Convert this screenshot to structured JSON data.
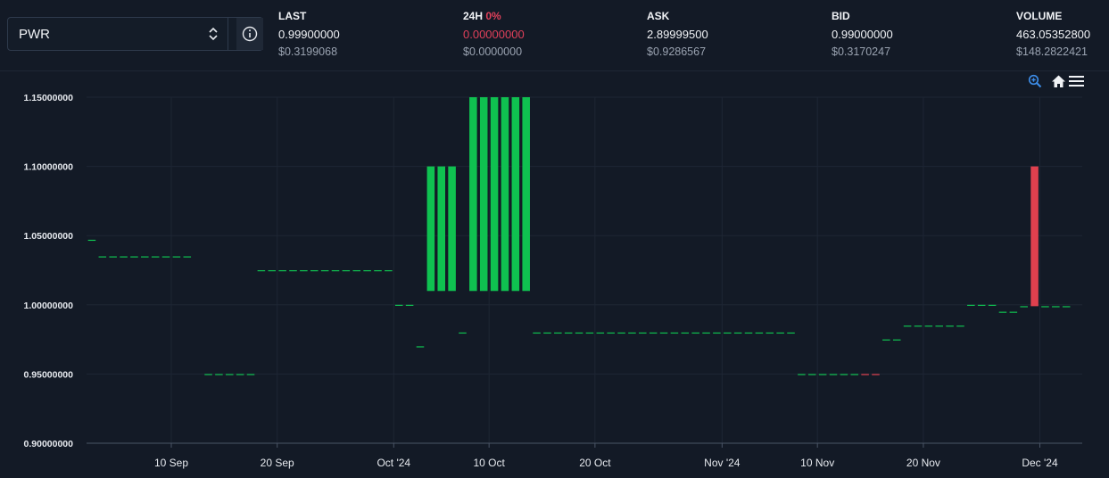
{
  "selector": {
    "symbol": "PWR"
  },
  "stats": {
    "last": {
      "label": "LAST",
      "value": "0.99900000",
      "usd": "$0.3199068"
    },
    "change": {
      "label": "24H",
      "pct": "0%",
      "value": "0.00000000",
      "usd": "$0.0000000"
    },
    "ask": {
      "label": "ASK",
      "value": "2.89999500",
      "usd": "$0.9286567"
    },
    "bid": {
      "label": "BID",
      "value": "0.99000000",
      "usd": "$0.3170247"
    },
    "volume": {
      "label": "VOLUME",
      "value": "463.05352800",
      "usd": "$148.2822421"
    }
  },
  "toolbar": {
    "icons": [
      "zoom-in-icon",
      "home-icon",
      "menu-icon"
    ]
  },
  "colors": {
    "up": "#0fc150",
    "down": "#e0404e",
    "grid": "#1e2634",
    "background": "#131a26"
  },
  "chart_data": {
    "type": "candlestick",
    "ylim": [
      0.9,
      1.15
    ],
    "yticks": [
      "1.15000000",
      "1.10000000",
      "1.05000000",
      "1.00000000",
      "0.95000000",
      "0.90000000"
    ],
    "ytick_values": [
      1.15,
      1.1,
      1.05,
      1.0,
      0.95,
      0.9
    ],
    "xlim": [
      "2024-09-02",
      "2024-12-05"
    ],
    "xticks": [
      {
        "date": "2024-09-10",
        "label": "10 Sep"
      },
      {
        "date": "2024-09-20",
        "label": "20 Sep"
      },
      {
        "date": "2024-10-01",
        "label": "Oct '24"
      },
      {
        "date": "2024-10-10",
        "label": "10 Oct"
      },
      {
        "date": "2024-10-20",
        "label": "20 Oct"
      },
      {
        "date": "2024-11-01",
        "label": "Nov '24"
      },
      {
        "date": "2024-11-10",
        "label": "10 Nov"
      },
      {
        "date": "2024-11-20",
        "label": "20 Nov"
      },
      {
        "date": "2024-12-01",
        "label": "Dec '24"
      }
    ],
    "grid": true,
    "candles": [
      {
        "start": "2024-09-02",
        "count": 1,
        "open": 1.047,
        "close": 1.047,
        "dir": "up"
      },
      {
        "start": "2024-09-03",
        "count": 9,
        "open": 1.035,
        "close": 1.035,
        "dir": "up"
      },
      {
        "start": "2024-09-13",
        "count": 5,
        "open": 0.95,
        "close": 0.95,
        "dir": "up"
      },
      {
        "start": "2024-09-18",
        "count": 13,
        "open": 1.025,
        "close": 1.025,
        "dir": "up"
      },
      {
        "start": "2024-10-01",
        "count": 2,
        "open": 1.0,
        "close": 1.0,
        "dir": "up"
      },
      {
        "start": "2024-10-03",
        "count": 1,
        "open": 0.97,
        "close": 0.97,
        "dir": "up"
      },
      {
        "start": "2024-10-04",
        "count": 3,
        "open": 1.01,
        "close": 1.1,
        "dir": "up"
      },
      {
        "start": "2024-10-07",
        "count": 1,
        "open": 0.98,
        "close": 0.98,
        "dir": "up"
      },
      {
        "start": "2024-10-08",
        "count": 6,
        "open": 1.01,
        "close": 1.15,
        "dir": "up"
      },
      {
        "start": "2024-10-14",
        "count": 25,
        "open": 0.98,
        "close": 0.98,
        "dir": "up"
      },
      {
        "start": "2024-11-08",
        "count": 6,
        "open": 0.95,
        "close": 0.95,
        "dir": "up"
      },
      {
        "start": "2024-11-14",
        "count": 2,
        "open": 0.95,
        "close": 0.95,
        "dir": "down"
      },
      {
        "start": "2024-11-16",
        "count": 2,
        "open": 0.975,
        "close": 0.975,
        "dir": "up"
      },
      {
        "start": "2024-11-18",
        "count": 6,
        "open": 0.985,
        "close": 0.985,
        "dir": "up"
      },
      {
        "start": "2024-11-24",
        "count": 3,
        "open": 1.0,
        "close": 1.0,
        "dir": "up"
      },
      {
        "start": "2024-11-27",
        "count": 2,
        "open": 0.995,
        "close": 0.995,
        "dir": "up"
      },
      {
        "start": "2024-11-29",
        "count": 1,
        "open": 0.999,
        "close": 0.999,
        "dir": "up"
      },
      {
        "start": "2024-11-30",
        "count": 1,
        "open": 1.1,
        "close": 0.999,
        "dir": "down"
      },
      {
        "start": "2024-12-01",
        "count": 3,
        "open": 0.999,
        "close": 0.999,
        "dir": "up"
      }
    ]
  }
}
